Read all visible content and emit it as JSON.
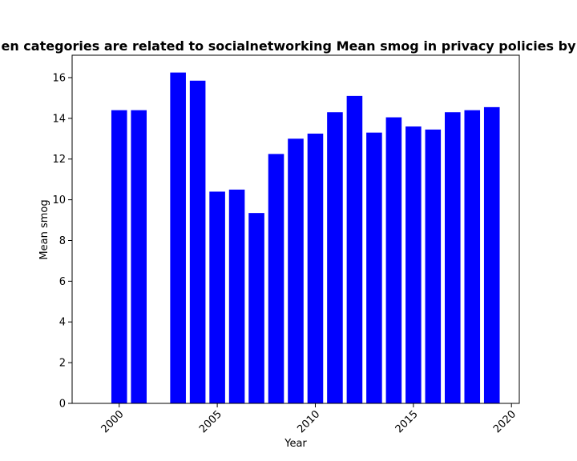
{
  "chart_data": {
    "type": "bar",
    "title": "en categories are related to socialnetworking Mean smog in privacy policies by",
    "xlabel": "Year",
    "ylabel": "Mean smog",
    "x": [
      2000,
      2001,
      2003,
      2004,
      2005,
      2006,
      2007,
      2008,
      2009,
      2010,
      2011,
      2012,
      2013,
      2014,
      2015,
      2016,
      2017,
      2018,
      2019
    ],
    "values": [
      14.4,
      14.4,
      16.25,
      15.85,
      10.4,
      10.5,
      9.35,
      12.25,
      13.0,
      13.25,
      14.3,
      15.1,
      13.3,
      14.05,
      13.6,
      13.45,
      14.3,
      14.4,
      14.55
    ],
    "xlim": [
      1997.6,
      2020.4
    ],
    "ylim": [
      0,
      17.1
    ],
    "xticks": [
      "2000",
      "2005",
      "2010",
      "2015",
      "2020"
    ],
    "xtick_values": [
      2000,
      2005,
      2010,
      2015,
      2020
    ],
    "yticks": [
      "0",
      "2",
      "4",
      "6",
      "8",
      "10",
      "12",
      "14",
      "16"
    ],
    "ytick_values": [
      0,
      2,
      4,
      6,
      8,
      10,
      12,
      14,
      16
    ],
    "bar_color": "#0000ff",
    "grid": false,
    "legend": "none"
  }
}
